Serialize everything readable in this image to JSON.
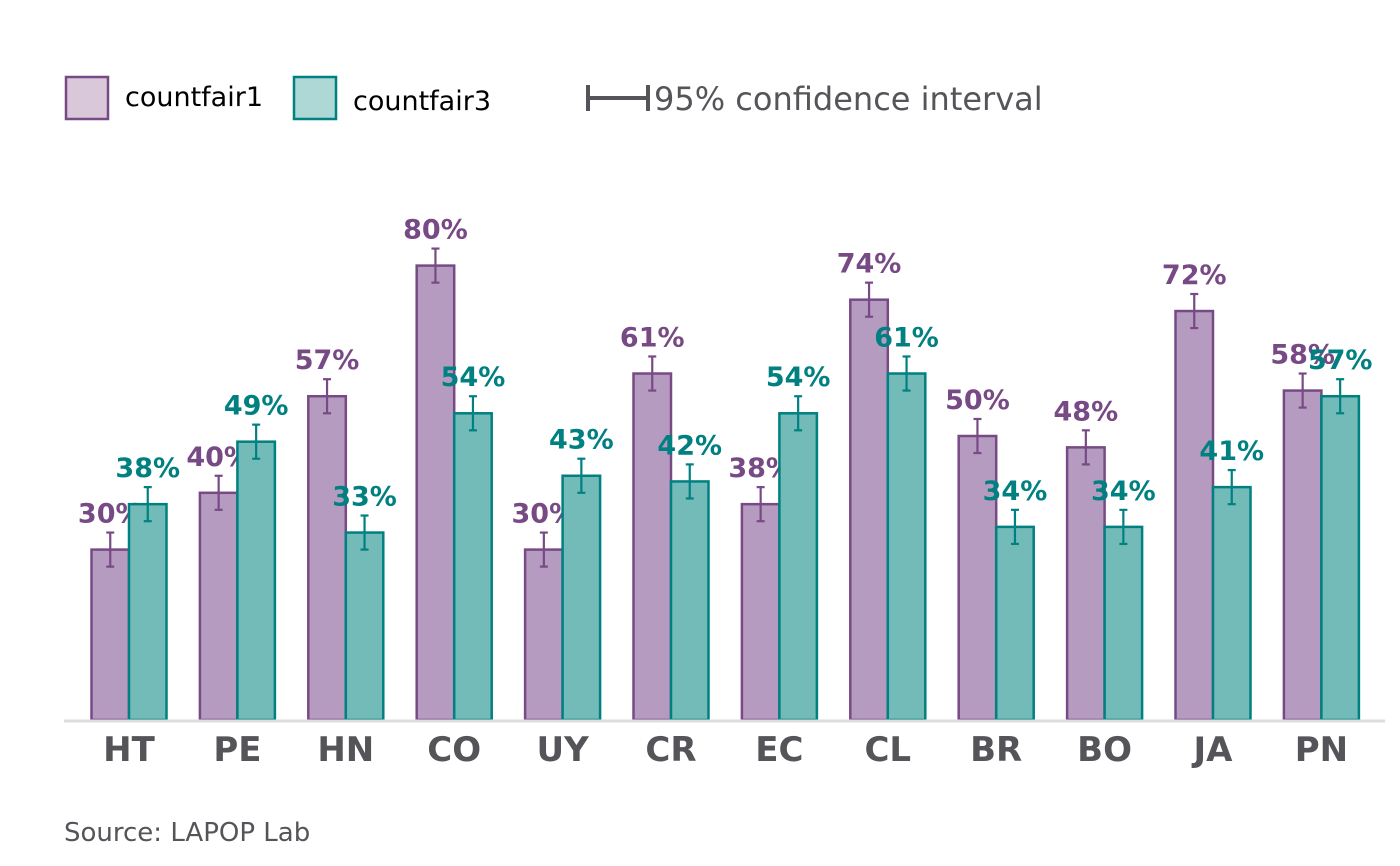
{
  "legend": {
    "series1_label": "countfair1",
    "series2_label": "countfair3",
    "ci_label": "95% confidence interval"
  },
  "source": "Source: LAPOP Lab",
  "colors": {
    "series1_fill": "#b59bbf",
    "series1_stroke": "#784a85",
    "series1_swatch": "#d8c8da",
    "series2_fill": "#72bbb8",
    "series2_stroke": "#008080",
    "series2_swatch": "#aed8d6",
    "axis_line": "#dddddd",
    "text_gray": "#545459"
  },
  "chart_data": {
    "type": "bar",
    "categories": [
      "HT",
      "PE",
      "HN",
      "CO",
      "UY",
      "CR",
      "EC",
      "CL",
      "BR",
      "BO",
      "JA",
      "PN"
    ],
    "series": [
      {
        "name": "countfair1",
        "values": [
          30,
          40,
          57,
          80,
          30,
          61,
          38,
          74,
          50,
          48,
          72,
          58
        ],
        "labels": [
          "30%",
          "40%",
          "57%",
          "80%",
          "30%",
          "61%",
          "38%",
          "74%",
          "50%",
          "48%",
          "72%",
          "58%"
        ],
        "ci_halfwidth": [
          3,
          3,
          3,
          3,
          3,
          3,
          3,
          3,
          3,
          3,
          3,
          3
        ]
      },
      {
        "name": "countfair3",
        "values": [
          38,
          49,
          33,
          54,
          43,
          42,
          54,
          61,
          34,
          34,
          41,
          57
        ],
        "labels": [
          "38%",
          "49%",
          "33%",
          "54%",
          "43%",
          "42%",
          "54%",
          "61%",
          "34%",
          "34%",
          "41%",
          "57%"
        ],
        "ci_halfwidth": [
          3,
          3,
          3,
          3,
          3,
          3,
          3,
          3,
          3,
          3,
          3,
          3
        ]
      }
    ],
    "ylim": [
      0,
      100
    ],
    "grid": false,
    "legend_position": "top-left"
  }
}
